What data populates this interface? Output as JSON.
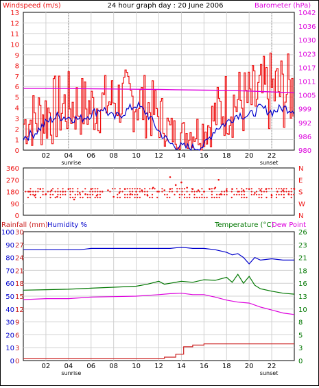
{
  "title": "24 hour graph day : 20 June 2006",
  "colors": {
    "red": "#ee1111",
    "blue": "#0000cc",
    "magenta": "#dd00dd",
    "green": "#007700",
    "darkred": "#cc2222",
    "grid": "#d0d0d0"
  },
  "chart_data": [
    {
      "type": "line",
      "id": "wind",
      "title": "24 hour graph day : 20 June 2006",
      "left_label": "Windspeed (m/s)",
      "right_label": "Barometer (hPa)",
      "x_ticks": [
        "02",
        "04",
        "06",
        "08",
        "10",
        "12",
        "14",
        "16",
        "18",
        "20",
        "22"
      ],
      "sun_labels": {
        "sunrise": "sunrise",
        "sunset": "sunset"
      },
      "sunrise_hour": 4.0,
      "sunset_hour": 22.0,
      "xlim": [
        0,
        24
      ],
      "ylim": [
        0,
        13
      ],
      "y_ticks": [
        "0",
        "1",
        "2",
        "3",
        "4",
        "5",
        "6",
        "7",
        "8",
        "9",
        "10",
        "11",
        "12",
        "13"
      ],
      "right_ylim": [
        980,
        1042
      ],
      "right_ticks": [
        "980",
        "986",
        "992",
        "999",
        "1005",
        "1011",
        "1017",
        "1023",
        "1030",
        "1036",
        "1042"
      ],
      "gust_ranges": [
        {
          "x": [
            0,
            2,
            4,
            6,
            8,
            10,
            12,
            13,
            14,
            16,
            18,
            20,
            22,
            24
          ],
          "min": [
            0,
            0,
            1,
            1,
            2,
            1.5,
            0.5,
            0,
            0,
            0,
            1,
            1,
            1.5,
            2
          ],
          "max": [
            5,
            7,
            7.5,
            7,
            7.5,
            8,
            6,
            3.5,
            3,
            4,
            8,
            8,
            9.5,
            9
          ]
        }
      ],
      "series": [
        {
          "name": "Windspeed average",
          "color": "blue",
          "x": [
            0,
            1,
            2,
            3,
            4,
            5,
            6,
            7,
            8,
            9,
            10,
            11,
            12,
            13,
            14,
            15,
            16,
            17,
            18,
            19,
            20,
            21,
            22,
            23,
            24
          ],
          "y": [
            1.2,
            1.6,
            2.6,
            3.2,
            3.1,
            2.9,
            3.4,
            4.0,
            3.0,
            3.6,
            4.3,
            3.4,
            1.8,
            0.6,
            0.3,
            0.2,
            0.4,
            2.0,
            2.6,
            3.4,
            3.2,
            4.0,
            3.6,
            4.0,
            3.8
          ]
        },
        {
          "name": "Barometer",
          "color": "magenta",
          "axis": "right",
          "x": [
            0,
            2,
            4,
            6,
            8,
            10,
            12,
            14,
            16,
            18,
            20,
            22,
            24
          ],
          "y": [
            1007.8,
            1007.8,
            1007.7,
            1007.6,
            1007.5,
            1007.4,
            1007.3,
            1007.1,
            1007.0,
            1006.9,
            1006.6,
            1006.2,
            1005.8
          ]
        }
      ]
    },
    {
      "type": "scatter",
      "id": "direction",
      "ylim": [
        0,
        360
      ],
      "y_ticks": [
        "0",
        "90",
        "180",
        "270",
        "360"
      ],
      "right_ticks": [
        "N",
        "W",
        "S",
        "E",
        "N"
      ],
      "xlim": [
        0,
        24
      ],
      "x": [
        0.5,
        1.0,
        1.5,
        2.0,
        2.5,
        3.0,
        3.5,
        4.0,
        4.5,
        5.0,
        5.5,
        6.0,
        6.5,
        7.0,
        7.5,
        8.0,
        8.5,
        9.0,
        9.5,
        10.0,
        10.5,
        11.0,
        11.5,
        12.0,
        12.5,
        13.0,
        13.5,
        14.0,
        14.5,
        15.0,
        15.5,
        16.0,
        16.5,
        17.0,
        17.5,
        18.0,
        18.5,
        19.0,
        19.5,
        20.0,
        20.5,
        21.0,
        21.5,
        22.0,
        22.5,
        23.0,
        23.5,
        24.0,
        13.0,
        17.3
      ],
      "y": [
        180,
        150,
        200,
        160,
        190,
        140,
        180,
        200,
        120,
        170,
        160,
        200,
        150,
        180,
        190,
        140,
        170,
        200,
        160,
        180,
        190,
        150,
        210,
        180,
        190,
        200,
        230,
        250,
        210,
        200,
        190,
        180,
        200,
        210,
        160,
        190,
        200,
        180,
        190,
        200,
        170,
        190,
        200,
        150,
        180,
        190,
        160,
        200,
        290,
        270
      ]
    },
    {
      "type": "line",
      "id": "temp",
      "left_labels": {
        "rain": "Rainfall (mm)",
        "humidity": "Humidity %"
      },
      "right_labels": {
        "temp": "Temperature (°C)",
        "dew": "Dew Point"
      },
      "x_ticks": [
        "02",
        "04",
        "06",
        "08",
        "10",
        "12",
        "14",
        "16",
        "18",
        "20",
        "22"
      ],
      "sun_labels": {
        "sunrise": "sunrise",
        "sunset": "sunset"
      },
      "xlim": [
        0,
        24
      ],
      "humidity_ticks": [
        "0",
        "10",
        "20",
        "30",
        "40",
        "50",
        "60",
        "70",
        "80",
        "90",
        "100"
      ],
      "rain_ticks": [
        "0",
        "3",
        "6",
        "9",
        "12",
        "15",
        "18",
        "21",
        "24",
        "27",
        "30"
      ],
      "right_ticks": [
        "0",
        "3",
        "5",
        "8",
        "10",
        "13",
        "16",
        "18",
        "21",
        "23",
        "26"
      ],
      "ylim": [
        0,
        100
      ],
      "right_ylim": [
        0,
        26
      ],
      "series": [
        {
          "name": "Humidity",
          "color": "blue",
          "x": [
            0,
            1,
            2,
            3,
            4,
            5,
            6,
            7,
            8,
            9,
            10,
            11,
            12,
            13,
            14,
            15,
            16,
            17,
            18,
            18.5,
            19,
            19.5,
            20,
            20.5,
            21,
            22,
            23,
            24
          ],
          "y": [
            86,
            86,
            86,
            86,
            86,
            86,
            87,
            87,
            87,
            87,
            87,
            87,
            87,
            87,
            88,
            87,
            87,
            86,
            84,
            82,
            83,
            80,
            75,
            80,
            78,
            79,
            78,
            78
          ]
        },
        {
          "name": "Temperature",
          "color": "green",
          "axis": "right",
          "x": [
            0,
            2,
            4,
            6,
            8,
            10,
            11,
            12,
            12.5,
            13,
            14,
            15,
            16,
            17,
            18,
            18.5,
            19,
            19.5,
            20,
            20.5,
            21,
            22,
            23,
            24
          ],
          "y": [
            14.2,
            14.3,
            14.4,
            14.6,
            14.8,
            15.0,
            15.4,
            16.0,
            15.4,
            15.6,
            16.0,
            15.8,
            16.3,
            16.2,
            16.8,
            15.8,
            17.4,
            15.6,
            17.0,
            15.2,
            14.5,
            14.0,
            13.6,
            13.4
          ]
        },
        {
          "name": "Dew Point",
          "color": "magenta",
          "axis": "right",
          "x": [
            0,
            2,
            4,
            6,
            8,
            10,
            12,
            13,
            14,
            15,
            16,
            17,
            18,
            19,
            20,
            21,
            22,
            23,
            24
          ],
          "y": [
            12.3,
            12.5,
            12.5,
            12.8,
            12.9,
            13.0,
            13.3,
            13.5,
            13.6,
            13.3,
            13.3,
            12.8,
            12.2,
            11.8,
            11.6,
            10.8,
            10.2,
            9.6,
            9.3
          ]
        },
        {
          "name": "Rainfall",
          "color": "darkred",
          "x": [
            0,
            12,
            12.5,
            13.5,
            14.2,
            15,
            16,
            24
          ],
          "y": [
            0.5,
            0.5,
            0.8,
            1.5,
            3.2,
            3.6,
            3.9,
            3.9
          ],
          "rain_axis": true
        }
      ]
    }
  ]
}
